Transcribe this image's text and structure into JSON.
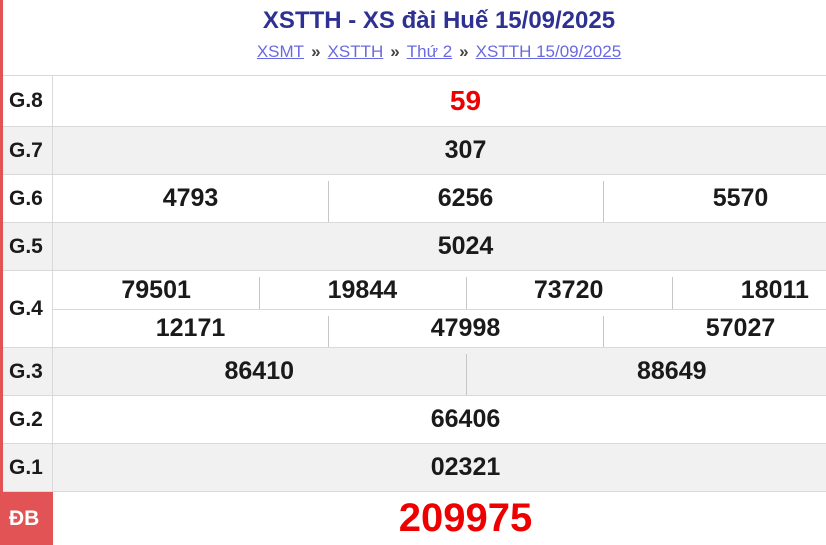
{
  "header": {
    "title": "XSTTH - XS đài Huế 15/09/2025",
    "breadcrumb": {
      "separator": "»",
      "items": [
        {
          "label": "XSMT"
        },
        {
          "label": "XSTTH"
        },
        {
          "label": "Thứ 2"
        },
        {
          "label": "XSTTH 15/09/2025"
        }
      ]
    }
  },
  "results_table": {
    "rows": [
      {
        "key": "g8",
        "prize": "G.8",
        "groups": [
          [
            "59"
          ]
        ]
      },
      {
        "key": "g7",
        "prize": "G.7",
        "groups": [
          [
            "307"
          ]
        ]
      },
      {
        "key": "g6",
        "prize": "G.6",
        "groups": [
          [
            "4793",
            "6256",
            "5570"
          ]
        ]
      },
      {
        "key": "g5",
        "prize": "G.5",
        "groups": [
          [
            "5024"
          ]
        ]
      },
      {
        "key": "g4",
        "prize": "G.4",
        "groups": [
          [
            "79501",
            "19844",
            "73720",
            "18011"
          ],
          [
            "12171",
            "47998",
            "57027"
          ]
        ]
      },
      {
        "key": "g3",
        "prize": "G.3",
        "groups": [
          [
            "86410",
            "88649"
          ]
        ]
      },
      {
        "key": "g2",
        "prize": "G.2",
        "groups": [
          [
            "66406"
          ]
        ]
      },
      {
        "key": "g1",
        "prize": "G.1",
        "groups": [
          [
            "02321"
          ]
        ]
      },
      {
        "key": "db",
        "prize": "ĐB",
        "groups": [
          [
            "209975"
          ]
        ]
      }
    ]
  },
  "colors": {
    "title_navy": "#2e3192",
    "link_blue": "#6a6ae0",
    "number_red": "#ee0000",
    "special_label_bg": "#e25355",
    "row_alt_bg": "#f1f1f1",
    "border": "#d9d9d9"
  }
}
